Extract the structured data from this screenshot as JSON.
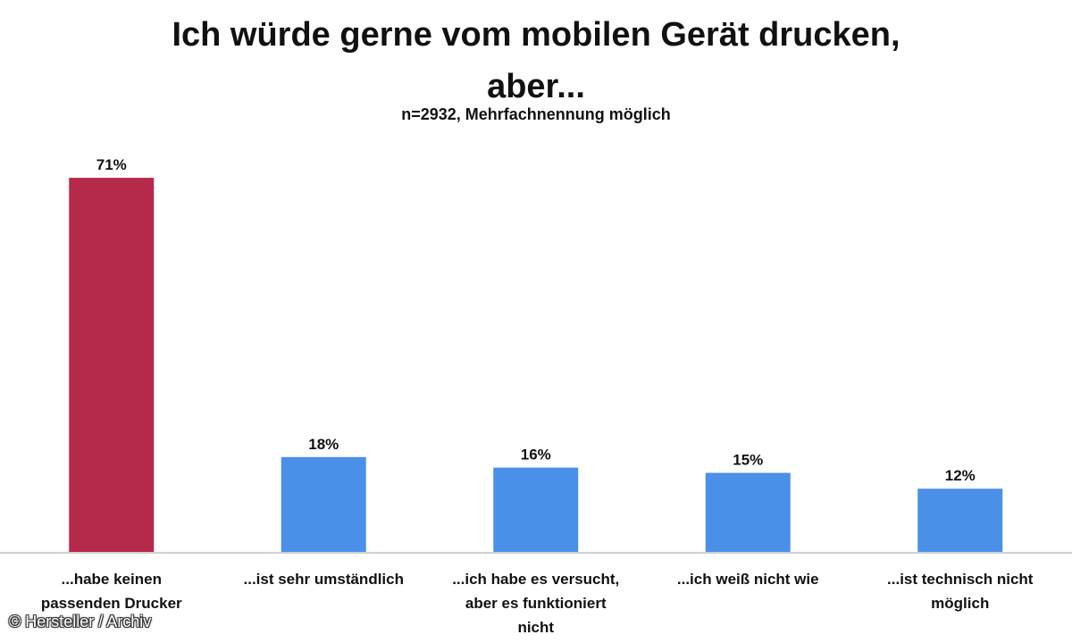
{
  "chart_data": {
    "type": "bar",
    "title_lines": [
      "Ich würde gerne vom mobilen Gerät drucken,",
      "aber..."
    ],
    "subtitle": "n=2932, Mehrfachnennung möglich",
    "categories": [
      [
        "...habe keinen",
        "passenden Drucker"
      ],
      [
        "...ist sehr umständlich"
      ],
      [
        "...ich habe es versucht,",
        "aber es funktioniert",
        "nicht"
      ],
      [
        "...ich weiß nicht wie"
      ],
      [
        "...ist technisch nicht",
        "möglich"
      ]
    ],
    "values": [
      71,
      18,
      16,
      15,
      12
    ],
    "value_labels": [
      "71%",
      "18%",
      "16%",
      "15%",
      "12%"
    ],
    "colors": [
      "#B5294B",
      "#4A90E8",
      "#4A90E8",
      "#4A90E8",
      "#4A90E8"
    ],
    "ylim": [
      0,
      80
    ],
    "grid": false,
    "legend": "none"
  },
  "copyright": "© Hersteller / Archiv"
}
